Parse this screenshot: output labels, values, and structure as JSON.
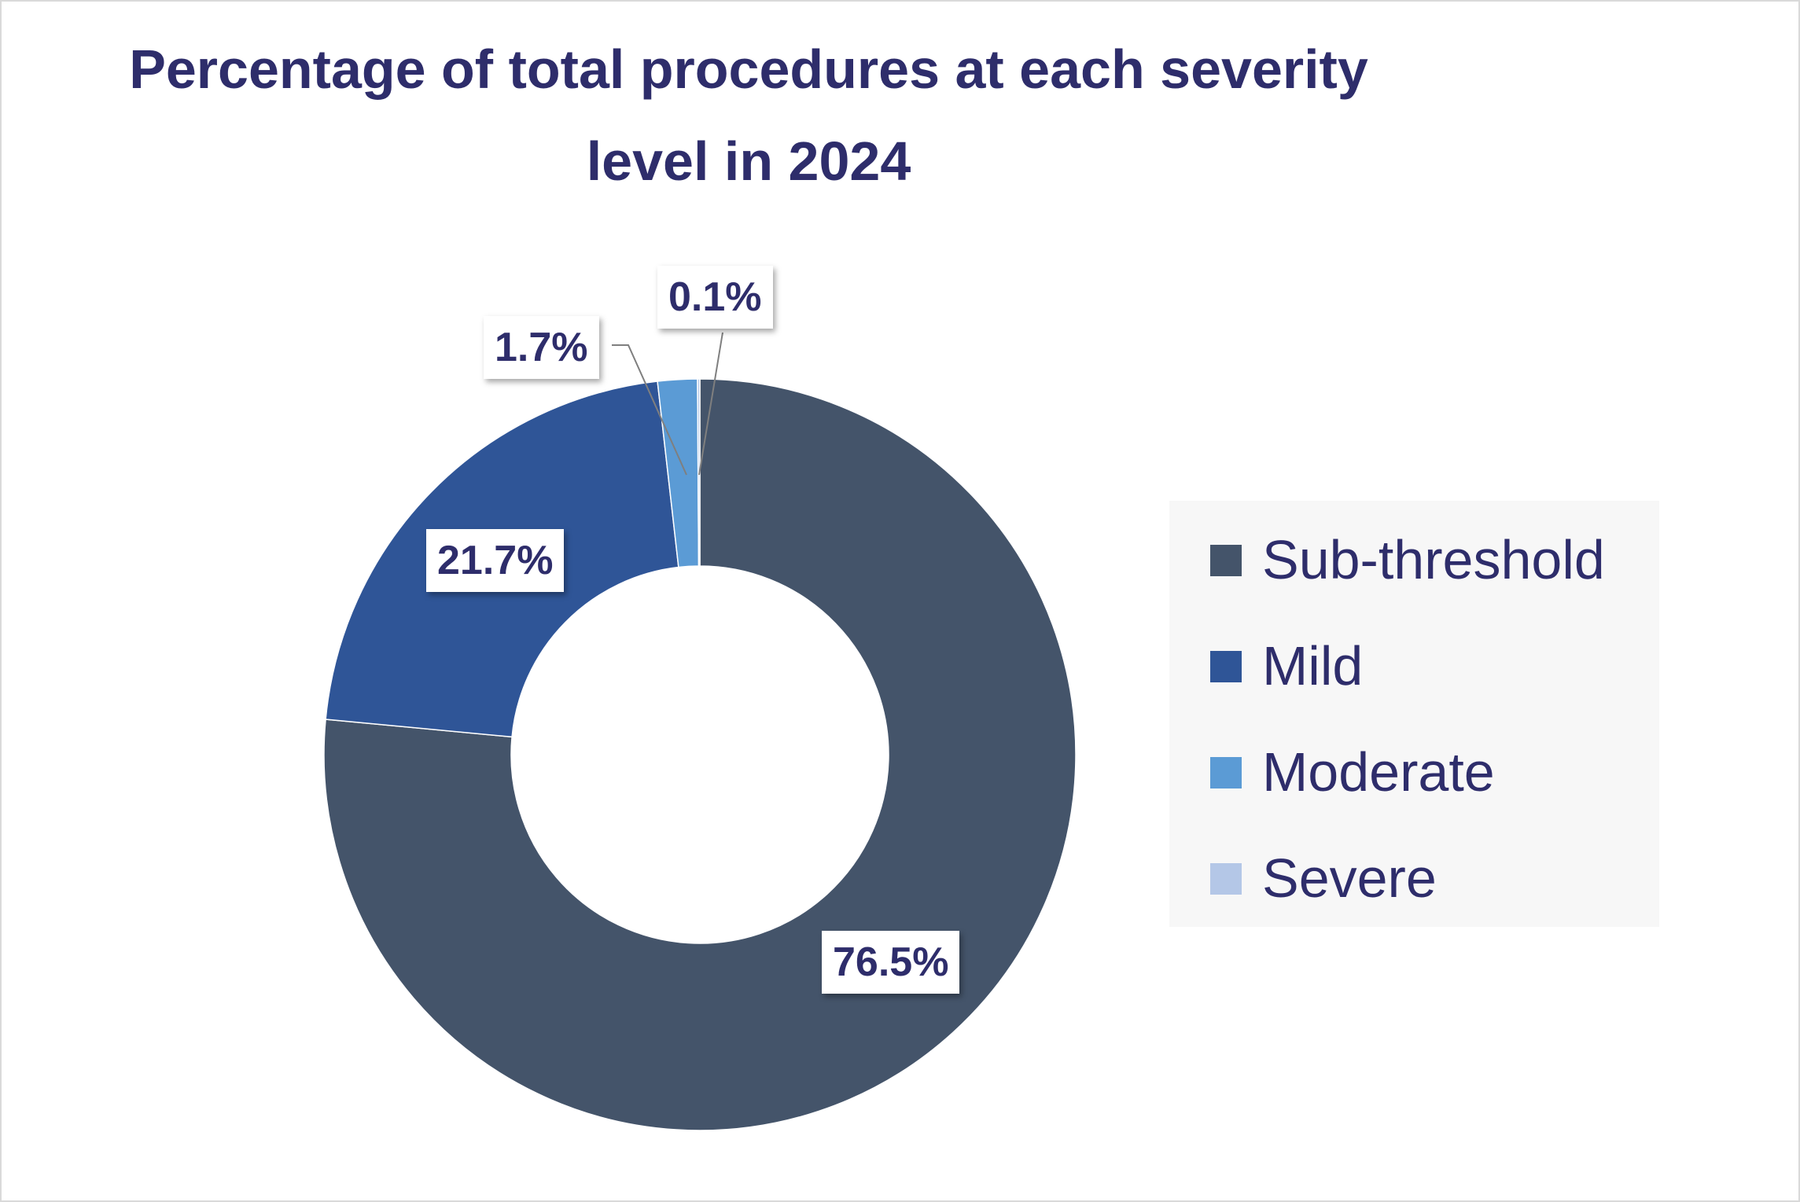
{
  "chart_data": {
    "type": "pie",
    "title_line1": "Percentage of total procedures at each severity",
    "title_line2": "level in 2024",
    "categories": [
      "Sub-threshold",
      "Mild",
      "Moderate",
      "Severe"
    ],
    "values": [
      76.5,
      21.7,
      1.7,
      0.1
    ],
    "data_labels": [
      "76.5%",
      "21.7%",
      "1.7%",
      "0.1%"
    ],
    "colors": [
      "#44546a",
      "#2f5597",
      "#5b9bd5",
      "#b4c7e7"
    ],
    "legend_position": "right",
    "style": "doughnut"
  }
}
